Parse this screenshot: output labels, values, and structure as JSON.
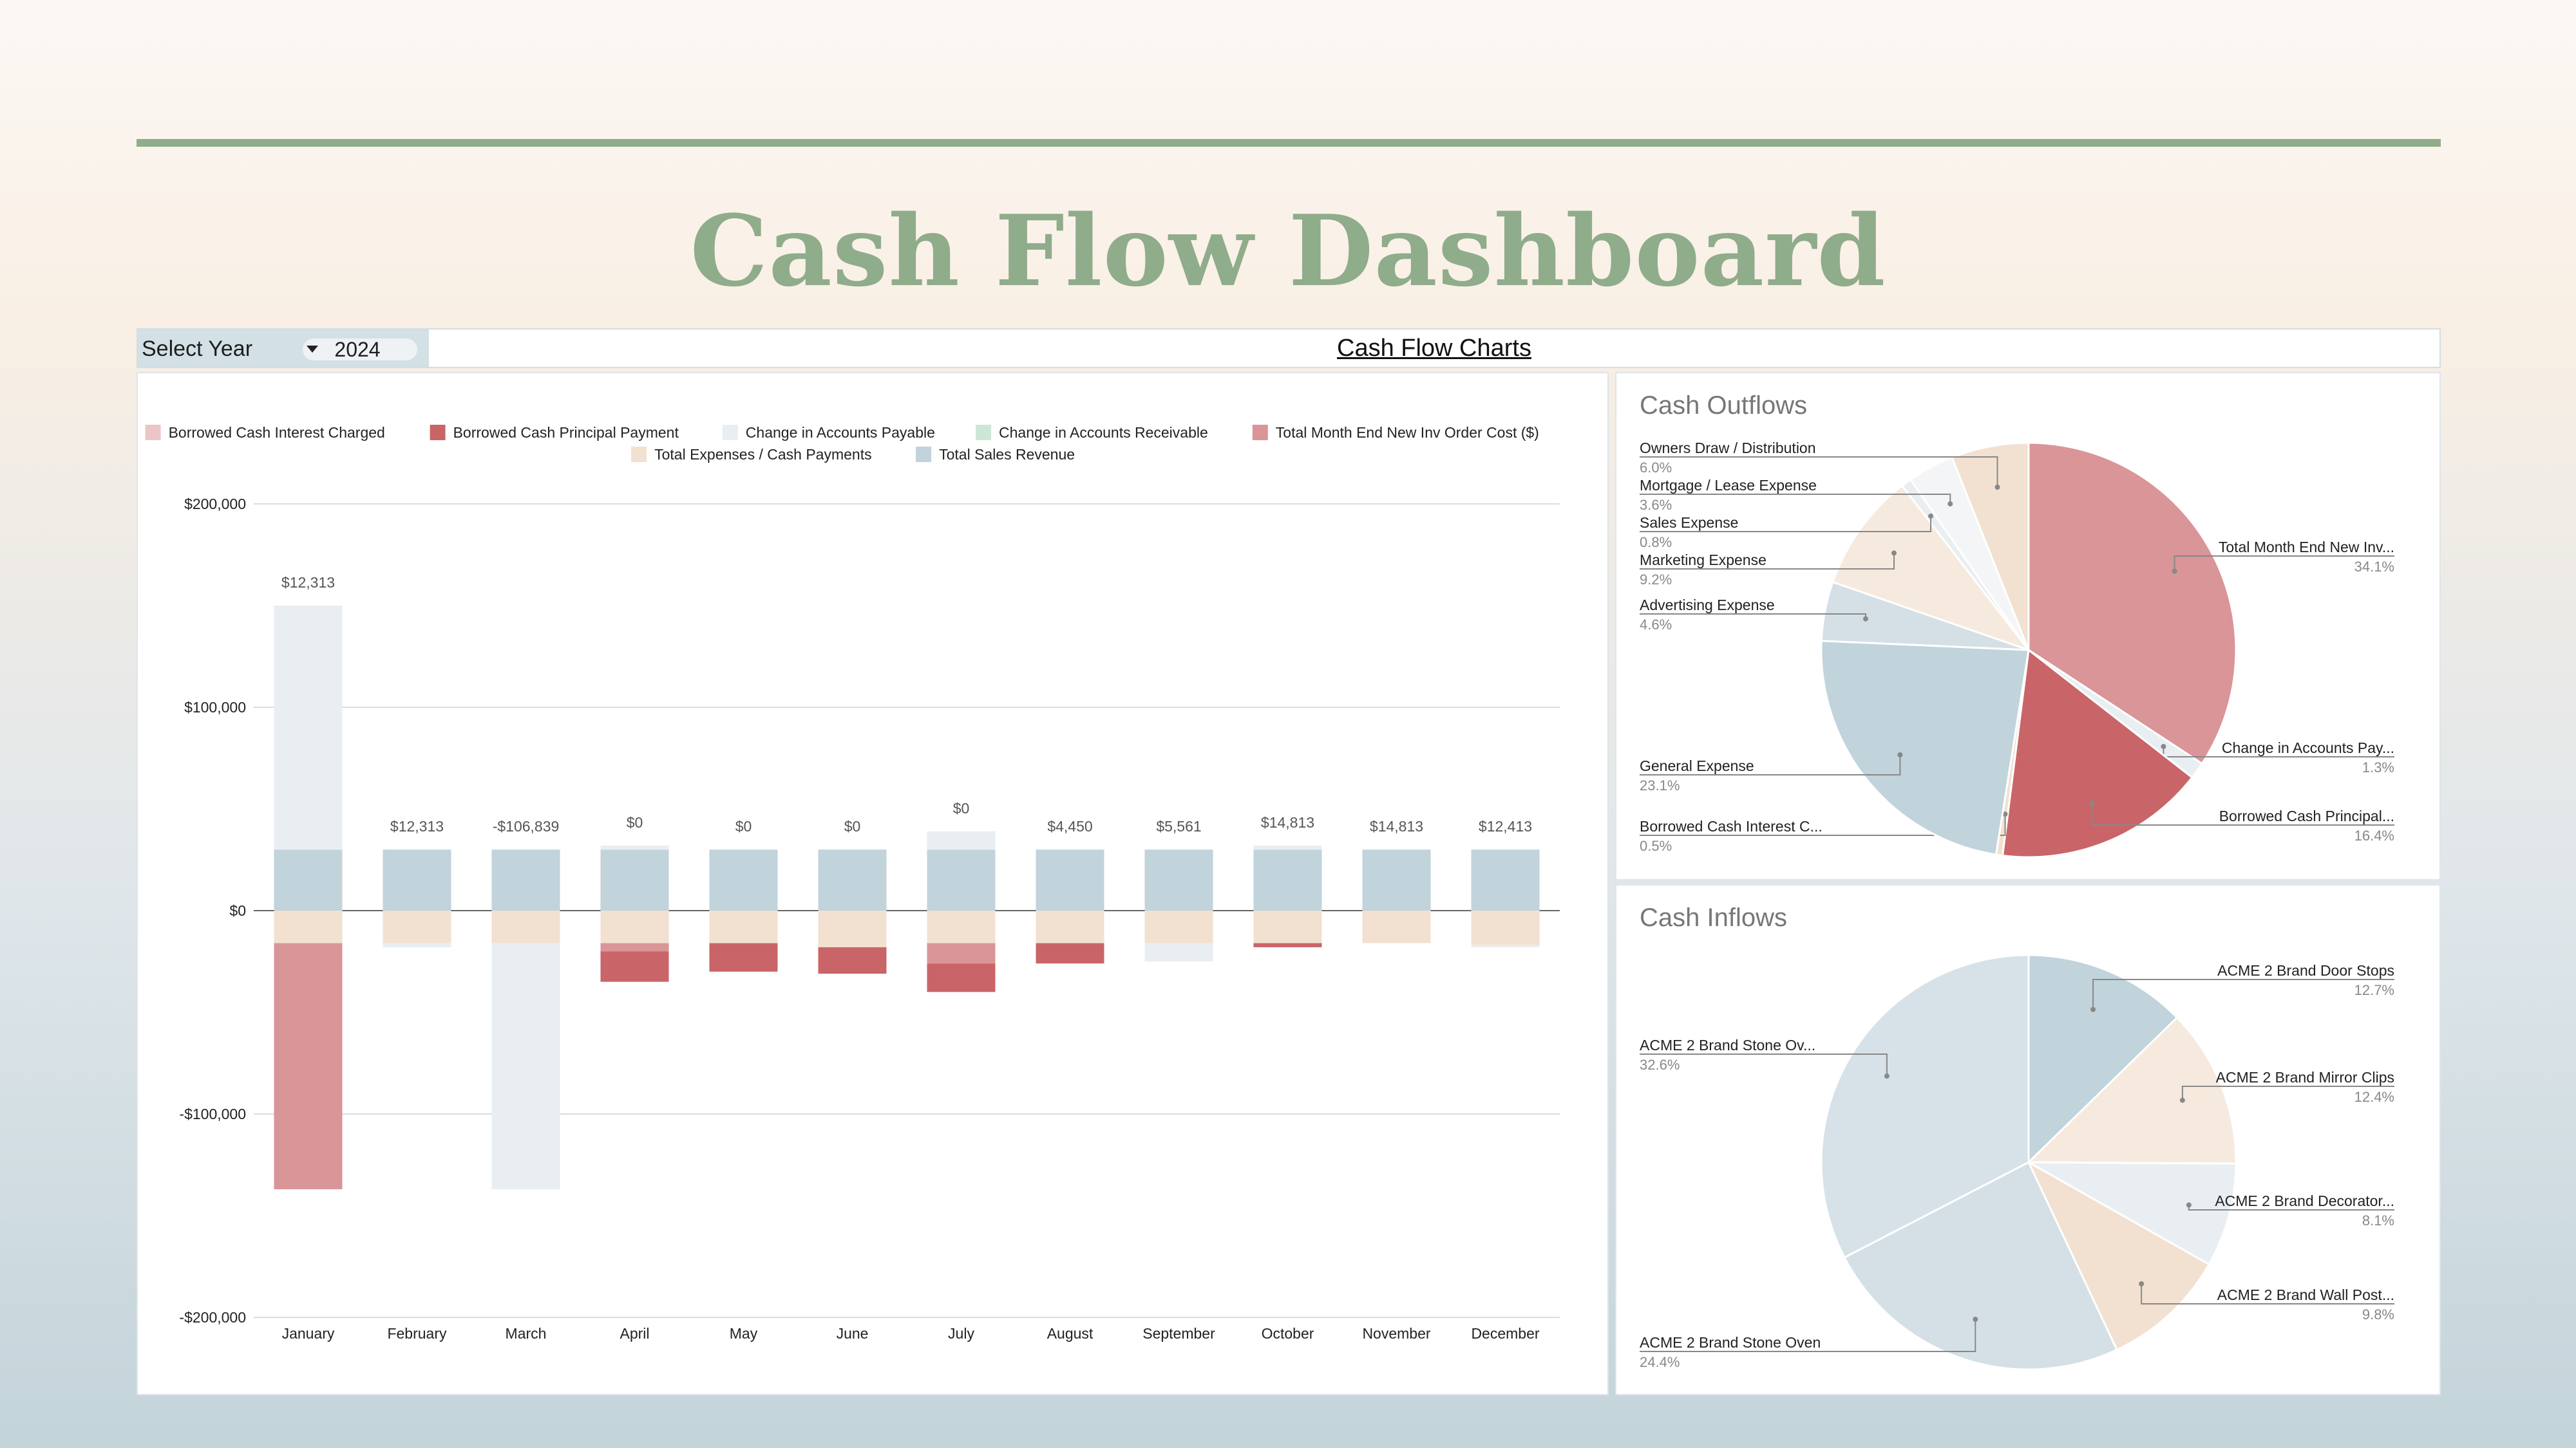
{
  "page": {
    "title": "Cash Flow Dashboard"
  },
  "controls": {
    "select_year_label": "Select Year",
    "year": "2024",
    "charts_link": "Cash Flow Charts"
  },
  "colors": {
    "interest": "#ecc5c7",
    "principal": "#c96568",
    "payable": "#e9eef2",
    "receivable": "#cde6d5",
    "inventory": "#d99597",
    "expenses": "#f2e1d0",
    "revenue": "#c1d3db",
    "accent": "#8fac8b"
  },
  "legend": [
    {
      "key": "interest",
      "label": "Borrowed Cash Interest Charged"
    },
    {
      "key": "principal",
      "label": "Borrowed Cash Principal Payment"
    },
    {
      "key": "payable",
      "label": "Change in Accounts Payable"
    },
    {
      "key": "receivable",
      "label": "Change in Accounts Receivable"
    },
    {
      "key": "inventory",
      "label": "Total Month End New Inv Order Cost ($)"
    },
    {
      "key": "expenses",
      "label": "Total Expenses / Cash Payments"
    },
    {
      "key": "revenue",
      "label": "Total Sales Revenue"
    }
  ],
  "chart_data": [
    {
      "type": "bar",
      "stacked": true,
      "categories": [
        "January",
        "February",
        "March",
        "April",
        "May",
        "June",
        "July",
        "August",
        "September",
        "October",
        "November",
        "December"
      ],
      "ylim": [
        -200000,
        200000
      ],
      "yticks": [
        200000,
        100000,
        0,
        -100000,
        -200000
      ],
      "ytick_labels": [
        "$200,000",
        "$100,000",
        "$0",
        "-$100,000",
        "-$200,000"
      ],
      "grid": true,
      "legend_position": "top",
      "series": [
        {
          "name": "Borrowed Cash Interest Charged",
          "key": "interest",
          "values": [
            0,
            0,
            0,
            0,
            0,
            0,
            0,
            0,
            0,
            0,
            0,
            0
          ]
        },
        {
          "name": "Borrowed Cash Principal Payment",
          "key": "principal",
          "values": [
            0,
            0,
            0,
            -15000,
            -14000,
            -13000,
            -14000,
            -10000,
            0,
            -2000,
            0,
            0
          ]
        },
        {
          "name": "Change in Accounts Payable",
          "key": "payable",
          "values": [
            120000,
            -2000,
            -121000,
            2000,
            0,
            0,
            9000,
            0,
            -9000,
            2000,
            0,
            -1000
          ]
        },
        {
          "name": "Change in Accounts Receivable",
          "key": "receivable",
          "values": [
            0,
            0,
            0,
            0,
            0,
            0,
            0,
            0,
            0,
            0,
            0,
            0
          ]
        },
        {
          "name": "Total Month End New Inv Order Cost ($)",
          "key": "inventory",
          "values": [
            -121000,
            0,
            0,
            -4000,
            0,
            0,
            -10000,
            0,
            0,
            0,
            0,
            0
          ]
        },
        {
          "name": "Total Expenses / Cash Payments",
          "key": "expenses",
          "values": [
            -16000,
            -16000,
            -16000,
            -16000,
            -16000,
            -18000,
            -16000,
            -16000,
            -16000,
            -16000,
            -16000,
            -17000
          ]
        },
        {
          "name": "Total Sales Revenue",
          "key": "revenue",
          "values": [
            30000,
            30000,
            30000,
            30000,
            30000,
            30000,
            30000,
            30000,
            30000,
            30000,
            30000,
            30000
          ]
        }
      ],
      "data_labels": [
        "$12,313",
        "$12,313",
        "-$106,839",
        "$0",
        "$0",
        "$0",
        "$0",
        "$4,450",
        "$5,561",
        "$14,813",
        "$14,813",
        "$12,413"
      ]
    },
    {
      "type": "pie",
      "title": "Cash Outflows",
      "slices": [
        {
          "label": "Total Month End New Inv...",
          "value": 34.1,
          "pct": "34.1%",
          "key": "inventory"
        },
        {
          "label": "Change in Accounts Pay...",
          "value": 1.3,
          "pct": "1.3%",
          "key": "payable"
        },
        {
          "label": "Borrowed Cash Principal...",
          "value": 16.4,
          "pct": "16.4%",
          "key": "principal"
        },
        {
          "label": "Borrowed Cash Interest C...",
          "value": 0.5,
          "pct": "0.5%",
          "key": "expenses"
        },
        {
          "label": "General Expense",
          "value": 23.1,
          "pct": "23.1%",
          "key": "revenue"
        },
        {
          "label": "Advertising Expense",
          "value": 4.6,
          "pct": "4.6%",
          "key": "lightblue"
        },
        {
          "label": "Marketing Expense",
          "value": 9.2,
          "pct": "9.2%",
          "key": "cream"
        },
        {
          "label": "Sales Expense",
          "value": 0.8,
          "pct": "0.8%",
          "key": "payable"
        },
        {
          "label": "Mortgage / Lease Expense",
          "value": 3.6,
          "pct": "3.6%",
          "key": "nearwhite"
        },
        {
          "label": "Owners Draw / Distribution",
          "value": 6.0,
          "pct": "6.0%",
          "key": "expenses"
        }
      ]
    },
    {
      "type": "pie",
      "title": "Cash Inflows",
      "slices": [
        {
          "label": "ACME 2 Brand Door Stops",
          "value": 12.7,
          "pct": "12.7%",
          "key": "revenue"
        },
        {
          "label": "ACME 2 Brand Mirror Clips",
          "value": 12.4,
          "pct": "12.4%",
          "key": "cream"
        },
        {
          "label": "ACME 2 Brand Decorator...",
          "value": 8.1,
          "pct": "8.1%",
          "key": "payable"
        },
        {
          "label": "ACME 2 Brand Wall Post...",
          "value": 9.8,
          "pct": "9.8%",
          "key": "expenses"
        },
        {
          "label": "ACME 2 Brand Stone Oven",
          "value": 24.4,
          "pct": "24.4%",
          "key": "lightblue"
        },
        {
          "label": "ACME 2 Brand Stone Ov...",
          "value": 32.6,
          "pct": "32.6%",
          "key": "lightblue2"
        }
      ]
    }
  ],
  "extra_colors": {
    "lightblue": "#d4e0e6",
    "cream": "#f6eade",
    "nearwhite": "#f3f5f7",
    "lightblue2": "#d7e2e8"
  }
}
